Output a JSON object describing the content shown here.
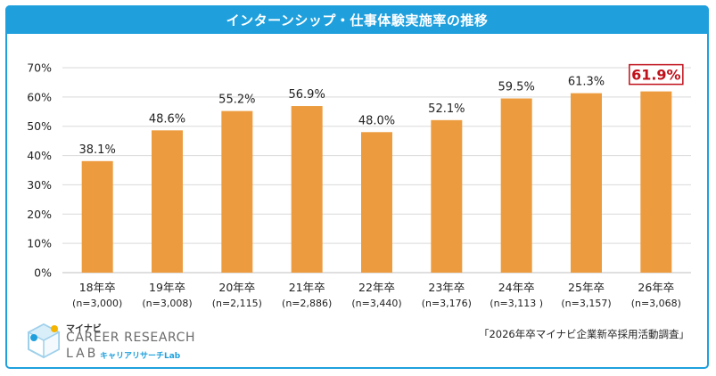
{
  "title": "インターンシップ・仕事体験実施率の推移",
  "chart_data": {
    "type": "bar",
    "categories": [
      "18年卒",
      "19年卒",
      "20年卒",
      "21年卒",
      "22年卒",
      "23年卒",
      "24年卒",
      "25年卒",
      "26年卒"
    ],
    "sample_sizes": [
      "(n=3,000)",
      "(n=3,008)",
      "(n=2,115)",
      "(n=2,886)",
      "(n=3,440)",
      "(n=3,176)",
      "(n=3,113 )",
      "(n=3,157)",
      "(n=3,068)"
    ],
    "values": [
      38.1,
      48.6,
      55.2,
      56.9,
      48.0,
      52.1,
      59.5,
      61.3,
      61.9
    ],
    "value_labels": [
      "38.1%",
      "48.6%",
      "55.2%",
      "56.9%",
      "48.0%",
      "52.1%",
      "59.5%",
      "61.3%",
      "61.9%"
    ],
    "highlighted_index": 8,
    "ylim": [
      0,
      70
    ],
    "yticks": [
      0,
      10,
      20,
      30,
      40,
      50,
      60,
      70
    ],
    "ytick_labels": [
      "0%",
      "10%",
      "20%",
      "30%",
      "40%",
      "50%",
      "60%",
      "70%"
    ],
    "bar_color": "#ec9c3e",
    "highlight_color": "#c0101a",
    "grid": true,
    "xlabel": "",
    "ylabel": ""
  },
  "logo": {
    "mynavi": "マイナビ",
    "line1": "CAREER RESEARCH",
    "line2": "LAB",
    "sub": "キャリアリサーチLab"
  },
  "source": "「2026年卒マイナビ企業新卒採用活動調査」",
  "colors": {
    "title_bar": "#1fa0dd",
    "frame": "#1fa0dd"
  }
}
